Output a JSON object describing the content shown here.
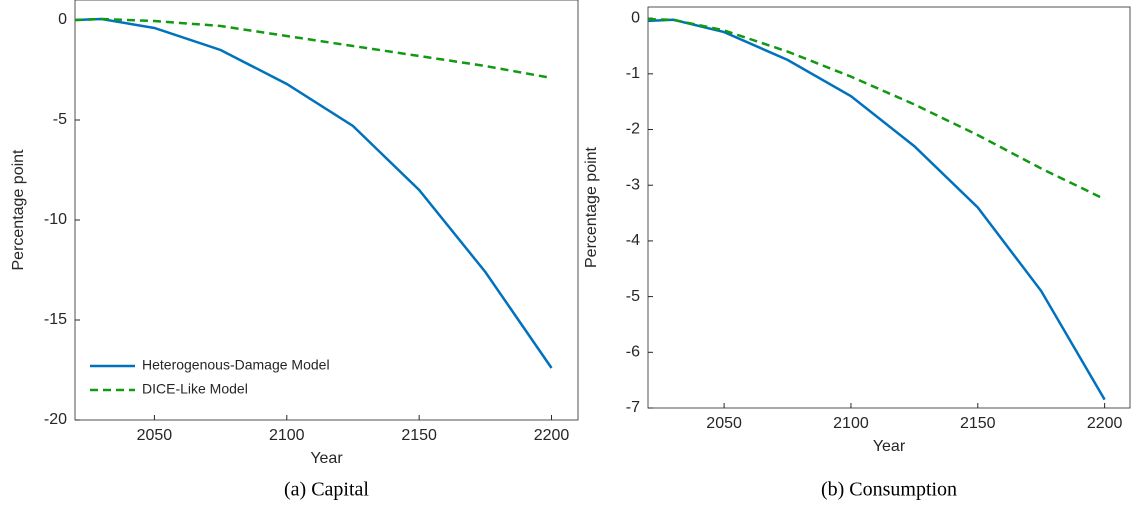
{
  "chart_data": [
    {
      "type": "line",
      "caption": "(a) Capital",
      "xlabel": "Year",
      "ylabel": "Percentage point",
      "x": [
        2020,
        2030,
        2050,
        2075,
        2100,
        2125,
        2150,
        2175,
        2200
      ],
      "series": [
        {
          "name": "Heterogenous-Damage Model",
          "color": "#0072bd",
          "dash": "solid",
          "values": [
            0,
            0.05,
            -0.4,
            -1.5,
            -3.2,
            -5.3,
            -8.5,
            -12.6,
            -17.4
          ]
        },
        {
          "name": "DICE-Like Model",
          "color": "#119911",
          "dash": "dashed",
          "values": [
            0,
            0.05,
            -0.05,
            -0.3,
            -0.8,
            -1.3,
            -1.8,
            -2.3,
            -2.9
          ]
        }
      ],
      "xlim": [
        2020,
        2210
      ],
      "xticks": [
        2050,
        2100,
        2150,
        2200
      ],
      "ylim": [
        -20,
        1
      ],
      "yticks": [
        -20,
        -15,
        -10,
        -5,
        0
      ],
      "legend": "lower left"
    },
    {
      "type": "line",
      "caption": "(b) Consumption",
      "xlabel": "Year",
      "ylabel": "Percentage point",
      "x": [
        2020,
        2030,
        2050,
        2075,
        2100,
        2125,
        2150,
        2175,
        2200
      ],
      "series": [
        {
          "color": "#0072bd",
          "dash": "solid",
          "values": [
            -0.05,
            -0.03,
            -0.25,
            -0.75,
            -1.4,
            -2.3,
            -3.4,
            -4.9,
            -6.85
          ]
        },
        {
          "color": "#119911",
          "dash": "dashed",
          "values": [
            -0.02,
            -0.03,
            -0.22,
            -0.6,
            -1.05,
            -1.55,
            -2.1,
            -2.7,
            -3.25
          ]
        }
      ],
      "xlim": [
        2020,
        2210
      ],
      "xticks": [
        2050,
        2100,
        2150,
        2200
      ],
      "ylim": [
        -7,
        0.2
      ],
      "yticks": [
        -7,
        -6,
        -5,
        -4,
        -3,
        -2,
        -1,
        0
      ]
    }
  ]
}
